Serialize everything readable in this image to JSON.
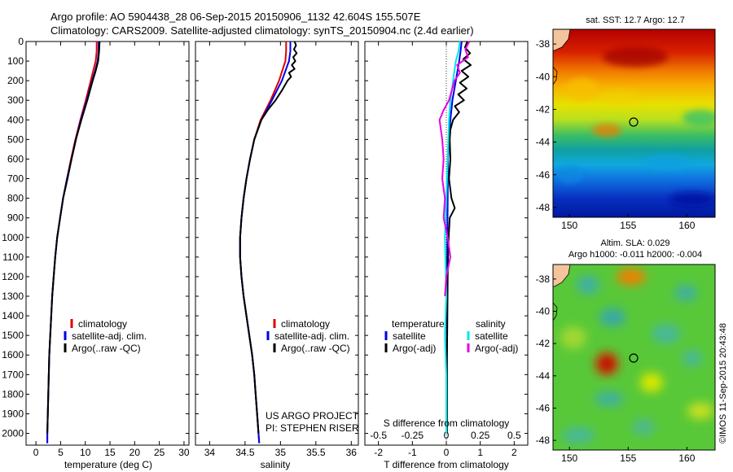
{
  "header": {
    "line1": "Argo profile: AO 5904438_28 06-Sep-2015 20150906_1132 42.604S 155.507E",
    "line2": "Climatology: CARS2009. Satellite-adjusted climatology: synTS_20150904.nc (2.4d earlier)"
  },
  "colors": {
    "clim": "#e00000",
    "sat": "#0000e6",
    "argo": "#000000",
    "sal_sat": "#00e6e6",
    "sal_argo": "#e600e6"
  },
  "credits": {
    "project": "US ARGO PROJECT",
    "pi": "PI: STEPHEN RISER",
    "imos": "©IMOS 11-Sep-2015 20:43:48"
  },
  "maps": {
    "sst": {
      "title": "sat. SST: 12.7 Argo: 12.7",
      "x_ticks": [
        "150",
        "155",
        "160"
      ],
      "y_ticks": [
        "-38",
        "-40",
        "-42",
        "-44",
        "-46",
        "-48"
      ]
    },
    "sla": {
      "title1": "Altim. SLA: 0.029",
      "title2": "Argo h1000: -0.011 h2000: -0.004",
      "x_ticks": [
        "150",
        "155",
        "160"
      ],
      "y_ticks": [
        "-38",
        "-40",
        "-42",
        "-44",
        "-46",
        "-48"
      ]
    }
  },
  "chart_data": [
    {
      "type": "line",
      "id": "temperature",
      "xlabel": "temperature (deg C)",
      "ylabel": "",
      "xlim": [
        -2,
        31
      ],
      "ylim": [
        0,
        2060
      ],
      "x_ticks": [
        0,
        5,
        10,
        15,
        20,
        25,
        30
      ],
      "y_ticks": [
        0,
        100,
        200,
        300,
        400,
        500,
        600,
        700,
        800,
        900,
        1000,
        1100,
        1200,
        1300,
        1400,
        1500,
        1600,
        1700,
        1800,
        1900,
        2000
      ],
      "legend": [
        "climatology",
        "satellite-adj. clim.",
        "Argo(..raw -QC)"
      ],
      "series": [
        {
          "name": "climatology",
          "color_key": "clim",
          "depth": [
            0,
            50,
            100,
            150,
            200,
            300,
            400,
            500,
            600,
            700,
            800,
            900,
            1000,
            1100,
            1200,
            1300,
            1400,
            1500,
            1600,
            1700,
            1800,
            1900,
            2000,
            2050
          ],
          "values": [
            12.3,
            12.3,
            12.1,
            11.6,
            11.1,
            10.1,
            9.0,
            8.0,
            7.1,
            6.3,
            5.5,
            4.9,
            4.3,
            3.9,
            3.6,
            3.3,
            3.1,
            2.9,
            2.7,
            2.6,
            2.5,
            2.4,
            2.3,
            2.3
          ]
        },
        {
          "name": "satellite-adj. clim.",
          "color_key": "sat",
          "depth": [
            0,
            50,
            100,
            150,
            200,
            300,
            400,
            500,
            600,
            700,
            800,
            900,
            1000,
            1100,
            1200,
            1300,
            1400,
            1500,
            1600,
            1700,
            1800,
            1900,
            2000,
            2050
          ],
          "values": [
            12.7,
            12.7,
            12.5,
            12.0,
            11.4,
            10.3,
            9.1,
            8.1,
            7.2,
            6.3,
            5.5,
            4.9,
            4.3,
            3.9,
            3.6,
            3.3,
            3.1,
            2.9,
            2.7,
            2.6,
            2.5,
            2.4,
            2.3,
            2.3
          ]
        },
        {
          "name": "Argo(..raw -QC)",
          "color_key": "argo",
          "depth": [
            0,
            50,
            100,
            150,
            200,
            300,
            400,
            500,
            600,
            700,
            800,
            900,
            1000,
            1100,
            1200,
            1300,
            1400,
            1500,
            1600,
            1700,
            1800,
            1900,
            2000
          ],
          "values": [
            12.9,
            12.8,
            12.6,
            12.1,
            11.5,
            10.4,
            9.2,
            8.1,
            7.2,
            6.4,
            5.5,
            4.9,
            4.3,
            3.9,
            3.6,
            3.3,
            3.1,
            2.9,
            2.7,
            2.6,
            2.5,
            2.4,
            2.3
          ]
        }
      ]
    },
    {
      "type": "line",
      "id": "salinity",
      "xlabel": "salinity",
      "ylabel": "",
      "xlim": [
        33.8,
        36.1
      ],
      "ylim": [
        0,
        2060
      ],
      "x_ticks": [
        34,
        34.5,
        35,
        35.5,
        36
      ],
      "x_tick_labels": [
        "34",
        "34.5",
        "35",
        "35.5",
        "36"
      ],
      "legend": [
        "climatology",
        "satellite-adj. clim.",
        "Argo(..raw -QC)"
      ],
      "series": [
        {
          "name": "climatology",
          "color_key": "clim",
          "depth": [
            0,
            50,
            100,
            200,
            300,
            400,
            500,
            600,
            700,
            800,
            900,
            1000,
            1100,
            1200,
            1300,
            1400,
            1500,
            1600,
            1700,
            1800,
            1900,
            2000,
            2050
          ],
          "values": [
            35.08,
            35.08,
            35.07,
            34.98,
            34.86,
            34.72,
            34.63,
            34.57,
            34.52,
            34.48,
            34.45,
            34.43,
            34.43,
            34.45,
            34.48,
            34.52,
            34.56,
            34.6,
            34.63,
            34.65,
            34.67,
            34.69,
            34.7
          ]
        },
        {
          "name": "satellite-adj. clim.",
          "color_key": "sat",
          "depth": [
            0,
            50,
            100,
            200,
            300,
            400,
            500,
            600,
            700,
            800,
            900,
            1000,
            1100,
            1200,
            1300,
            1400,
            1500,
            1600,
            1700,
            1800,
            1900,
            2000,
            2050
          ],
          "values": [
            35.14,
            35.14,
            35.12,
            35.02,
            34.88,
            34.73,
            34.63,
            34.57,
            34.52,
            34.48,
            34.45,
            34.43,
            34.43,
            34.45,
            34.48,
            34.52,
            34.56,
            34.6,
            34.63,
            34.65,
            34.67,
            34.69,
            34.7
          ]
        },
        {
          "name": "Argo(..raw -QC)",
          "color_key": "argo",
          "depth": [
            0,
            20,
            40,
            60,
            80,
            100,
            120,
            140,
            160,
            180,
            200,
            250,
            300,
            350,
            400,
            500,
            600,
            700,
            800,
            900,
            1000,
            1100,
            1200,
            1300,
            1400,
            1500,
            1600,
            1700,
            1800,
            1900,
            2000
          ],
          "values": [
            35.2,
            35.22,
            35.19,
            35.23,
            35.18,
            35.21,
            35.16,
            35.2,
            35.12,
            35.15,
            35.1,
            35.02,
            34.93,
            34.82,
            34.73,
            34.63,
            34.57,
            34.52,
            34.48,
            34.45,
            34.43,
            34.43,
            34.45,
            34.48,
            34.52,
            34.56,
            34.6,
            34.63,
            34.65,
            34.67,
            34.69
          ]
        }
      ]
    },
    {
      "type": "line",
      "id": "differences",
      "xlabel": "T difference from climatology",
      "xlabel_top": "S difference from climatology",
      "xlim": [
        -2.4,
        2.4
      ],
      "ylim": [
        0,
        2060
      ],
      "x_ticks": [
        -2,
        -1,
        0,
        1,
        2
      ],
      "x_tick_labels": [
        "-2",
        "-1",
        "0",
        "1",
        "2"
      ],
      "s_ticks": [
        -0.5,
        -0.25,
        0,
        0.25,
        0.5
      ],
      "s_tick_labels": [
        "-0.5",
        "-0.25",
        "0",
        "0.25",
        "0.5"
      ],
      "legend_groups": [
        {
          "title": "temperature",
          "items": [
            {
              "label": "satellite",
              "color_key": "sat"
            },
            {
              "label": "Argo(-adj)",
              "color_key": "argo"
            }
          ]
        },
        {
          "title": "salinity",
          "items": [
            {
              "label": "satellite",
              "color_key": "sal_sat"
            },
            {
              "label": "Argo(-adj)",
              "color_key": "sal_argo"
            }
          ]
        }
      ],
      "series": [
        {
          "name": "T satellite",
          "color_key": "sat",
          "depth": [
            0,
            50,
            100,
            200,
            300,
            400,
            500,
            600,
            800,
            1000,
            1200,
            1500,
            2000
          ],
          "values": [
            0.45,
            0.42,
            0.38,
            0.28,
            0.18,
            0.12,
            0.08,
            0.05,
            0.04,
            0.03,
            0.02,
            0.02,
            0.01
          ]
        },
        {
          "name": "T Argo(-adj)",
          "color_key": "argo",
          "depth": [
            0,
            30,
            60,
            90,
            120,
            150,
            180,
            210,
            240,
            270,
            300,
            330,
            360,
            400,
            450,
            500,
            600,
            700,
            800,
            850,
            900,
            1000,
            1100,
            1200,
            1400,
            1600,
            1800,
            2000
          ],
          "values": [
            0.62,
            0.55,
            0.7,
            0.5,
            0.72,
            0.45,
            0.65,
            0.4,
            0.6,
            0.35,
            0.52,
            0.25,
            0.38,
            0.2,
            0.12,
            0.1,
            0.12,
            0.08,
            0.15,
            0.25,
            0.1,
            0.07,
            0.05,
            0.04,
            0.03,
            0.02,
            0.02,
            0.02
          ]
        },
        {
          "name": "S satellite",
          "color_key": "sal_sat",
          "depth": [
            0,
            50,
            100,
            200,
            300,
            400,
            600,
            800,
            1000,
            1300,
            1500,
            1700,
            2000
          ],
          "values": [
            0.1,
            0.09,
            0.07,
            0.05,
            0.03,
            0.02,
            0.01,
            0.0,
            -0.01,
            0.0,
            -0.01,
            0.0,
            0.0
          ]
        },
        {
          "name": "S Argo(-adj)",
          "color_key": "sal_argo",
          "depth": [
            0,
            40,
            80,
            120,
            160,
            200,
            250,
            300,
            350,
            400,
            450,
            500,
            600,
            700,
            800,
            900,
            1000,
            1100,
            1200,
            1300
          ],
          "values": [
            0.17,
            0.14,
            0.16,
            0.08,
            0.1,
            0.06,
            0.04,
            0.02,
            -0.02,
            -0.05,
            -0.04,
            -0.03,
            -0.02,
            -0.03,
            -0.01,
            -0.02,
            0.01,
            0.03,
            0.0,
            -0.01
          ]
        }
      ]
    }
  ]
}
